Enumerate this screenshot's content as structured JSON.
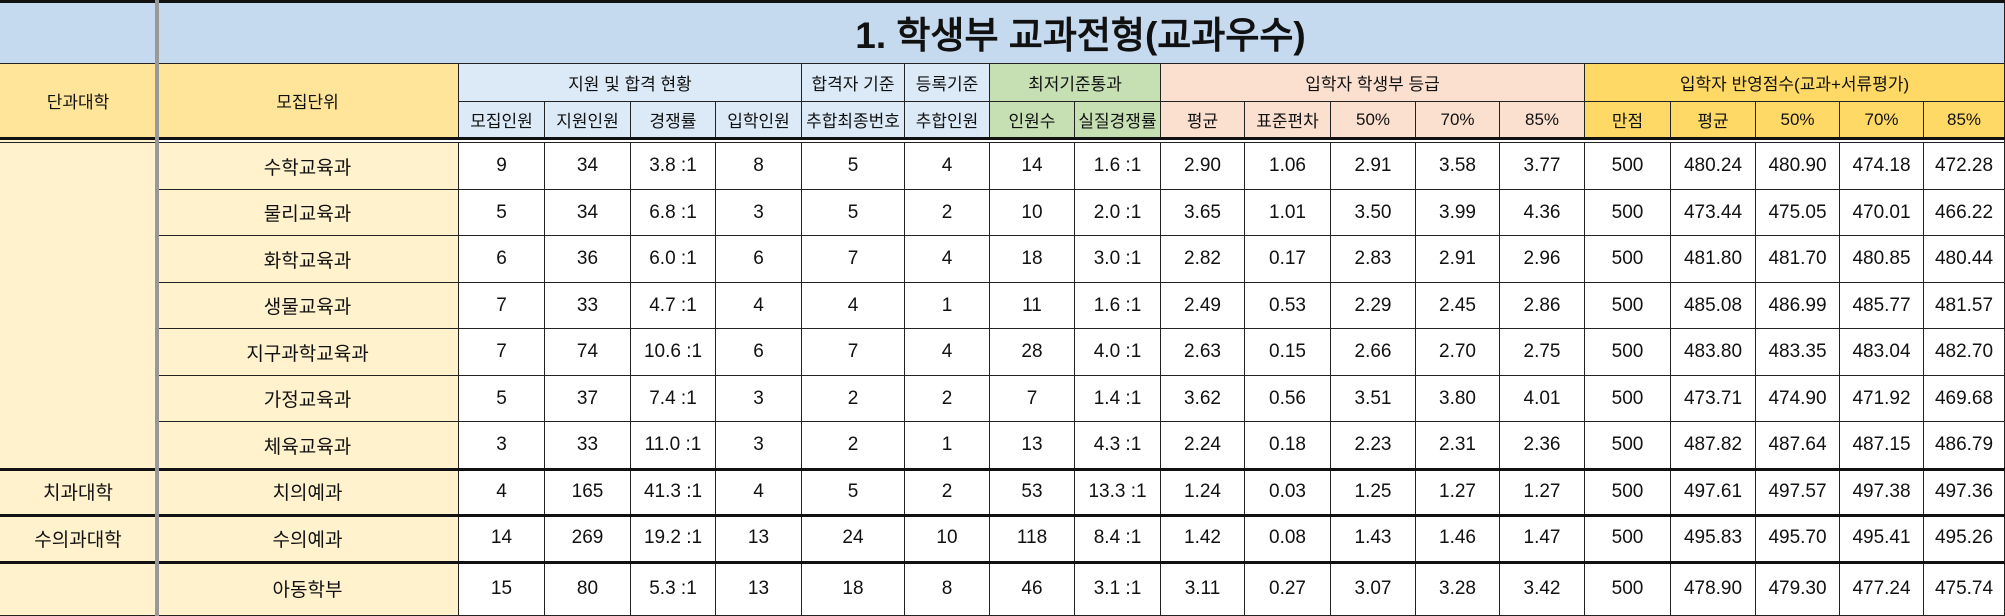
{
  "title": "1. 학생부 교과전형(교과우수)",
  "headers": {
    "college": "단과대학",
    "unit": "모집단위",
    "groups": [
      {
        "label": "지원 및 합격 현황",
        "span": 4,
        "color": "#dce9f7"
      },
      {
        "label": "합격자 기준",
        "span": 1,
        "color": "#dce9f7"
      },
      {
        "label": "등록기준",
        "span": 1,
        "color": "#dce9f7"
      },
      {
        "label": "최저기준통과",
        "span": 2,
        "color": "#c6e0b4"
      },
      {
        "label": "입학자 학생부 등급",
        "span": 5,
        "color": "#fbe0d0"
      },
      {
        "label": "입학자 반영점수(교과+서류평가)",
        "span": 5,
        "color": "#ffd966"
      }
    ],
    "columns": [
      "모집인원",
      "지원인원",
      "경쟁률",
      "입학인원",
      "추합최종번호",
      "추합인원",
      "인원수",
      "실질경쟁률",
      "평균",
      "표준편차",
      "50%",
      "70%",
      "85%",
      "만점",
      "평균",
      "50%",
      "70%",
      "85%"
    ]
  },
  "rows": [
    {
      "college": "",
      "unit": "수학교육과",
      "values": [
        "9",
        "34",
        "3.8 :1",
        "8",
        "5",
        "4",
        "14",
        "1.6 :1",
        "2.90",
        "1.06",
        "2.91",
        "3.58",
        "3.77",
        "500",
        "480.24",
        "480.90",
        "474.18",
        "472.28"
      ]
    },
    {
      "college": "",
      "unit": "물리교육과",
      "values": [
        "5",
        "34",
        "6.8 :1",
        "3",
        "5",
        "2",
        "10",
        "2.0 :1",
        "3.65",
        "1.01",
        "3.50",
        "3.99",
        "4.36",
        "500",
        "473.44",
        "475.05",
        "470.01",
        "466.22"
      ]
    },
    {
      "college": "",
      "unit": "화학교육과",
      "values": [
        "6",
        "36",
        "6.0 :1",
        "6",
        "7",
        "4",
        "18",
        "3.0 :1",
        "2.82",
        "0.17",
        "2.83",
        "2.91",
        "2.96",
        "500",
        "481.80",
        "481.70",
        "480.85",
        "480.44"
      ]
    },
    {
      "college": "",
      "unit": "생물교육과",
      "values": [
        "7",
        "33",
        "4.7 :1",
        "4",
        "4",
        "1",
        "11",
        "1.6 :1",
        "2.49",
        "0.53",
        "2.29",
        "2.45",
        "2.86",
        "500",
        "485.08",
        "486.99",
        "485.77",
        "481.57"
      ]
    },
    {
      "college": "",
      "unit": "지구과학교육과",
      "values": [
        "7",
        "74",
        "10.6 :1",
        "6",
        "7",
        "4",
        "28",
        "4.0 :1",
        "2.63",
        "0.15",
        "2.66",
        "2.70",
        "2.75",
        "500",
        "483.80",
        "483.35",
        "483.04",
        "482.70"
      ]
    },
    {
      "college": "",
      "unit": "가정교육과",
      "values": [
        "5",
        "37",
        "7.4 :1",
        "3",
        "2",
        "2",
        "7",
        "1.4 :1",
        "3.62",
        "0.56",
        "3.51",
        "3.80",
        "4.01",
        "500",
        "473.71",
        "474.90",
        "471.92",
        "469.68"
      ]
    },
    {
      "college": "",
      "unit": "체육교육과",
      "values": [
        "3",
        "33",
        "11.0 :1",
        "3",
        "2",
        "1",
        "13",
        "4.3 :1",
        "2.24",
        "0.18",
        "2.23",
        "2.31",
        "2.36",
        "500",
        "487.82",
        "487.64",
        "487.15",
        "486.79"
      ]
    },
    {
      "college": "치과대학",
      "unit": "치의예과",
      "values": [
        "4",
        "165",
        "41.3 :1",
        "4",
        "5",
        "2",
        "53",
        "13.3 :1",
        "1.24",
        "0.03",
        "1.25",
        "1.27",
        "1.27",
        "500",
        "497.61",
        "497.57",
        "497.38",
        "497.36"
      ]
    },
    {
      "college": "수의과대학",
      "unit": "수의예과",
      "values": [
        "14",
        "269",
        "19.2 :1",
        "13",
        "24",
        "10",
        "118",
        "8.4 :1",
        "1.42",
        "0.08",
        "1.43",
        "1.46",
        "1.47",
        "500",
        "495.83",
        "495.70",
        "495.41",
        "495.26"
      ]
    },
    {
      "college": "",
      "unit": "아동학부",
      "values": [
        "15",
        "80",
        "5.3 :1",
        "13",
        "18",
        "8",
        "46",
        "3.1 :1",
        "3.11",
        "0.27",
        "3.07",
        "3.28",
        "3.42",
        "500",
        "478.90",
        "479.30",
        "477.24",
        "475.74"
      ]
    }
  ]
}
